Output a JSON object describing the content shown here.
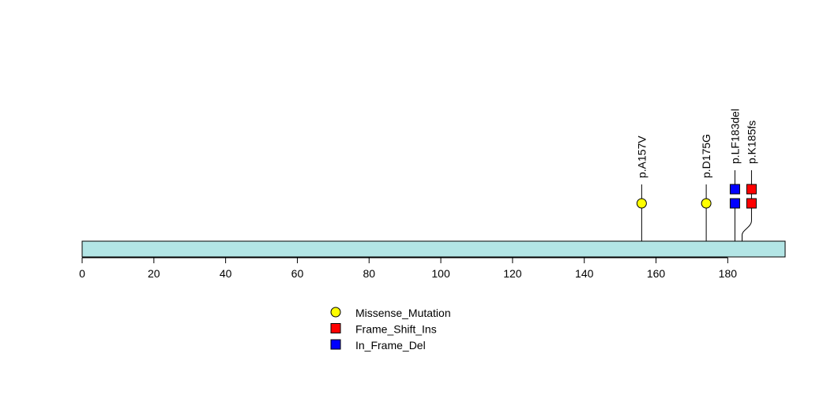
{
  "chart_data": {
    "type": "lollipop",
    "title": "",
    "xlabel": "",
    "ylabel": "",
    "xlim": [
      0,
      196
    ],
    "x_ticks": [
      0,
      20,
      40,
      60,
      80,
      100,
      120,
      140,
      160,
      180
    ],
    "protein_length": 196,
    "protein_color": "#b3e5e5",
    "mutations": [
      {
        "label": "p.A157V",
        "position": 156,
        "count": 1,
        "type": "Missense_Mutation"
      },
      {
        "label": "p.D175G",
        "position": 174,
        "count": 1,
        "type": "Missense_Mutation"
      },
      {
        "label": "p.LF183del",
        "position": 182,
        "count": 2,
        "type": "In_Frame_Del"
      },
      {
        "label": "p.K185fs",
        "position": 184,
        "count": 2,
        "type": "Frame_Shift_Ins"
      }
    ],
    "legend": [
      {
        "name": "Missense_Mutation",
        "color": "#ffff00",
        "shape": "circle"
      },
      {
        "name": "Frame_Shift_Ins",
        "color": "#ff0000",
        "shape": "square"
      },
      {
        "name": "In_Frame_Del",
        "color": "#0000ff",
        "shape": "square"
      }
    ],
    "legend_position": "bottom-center"
  }
}
